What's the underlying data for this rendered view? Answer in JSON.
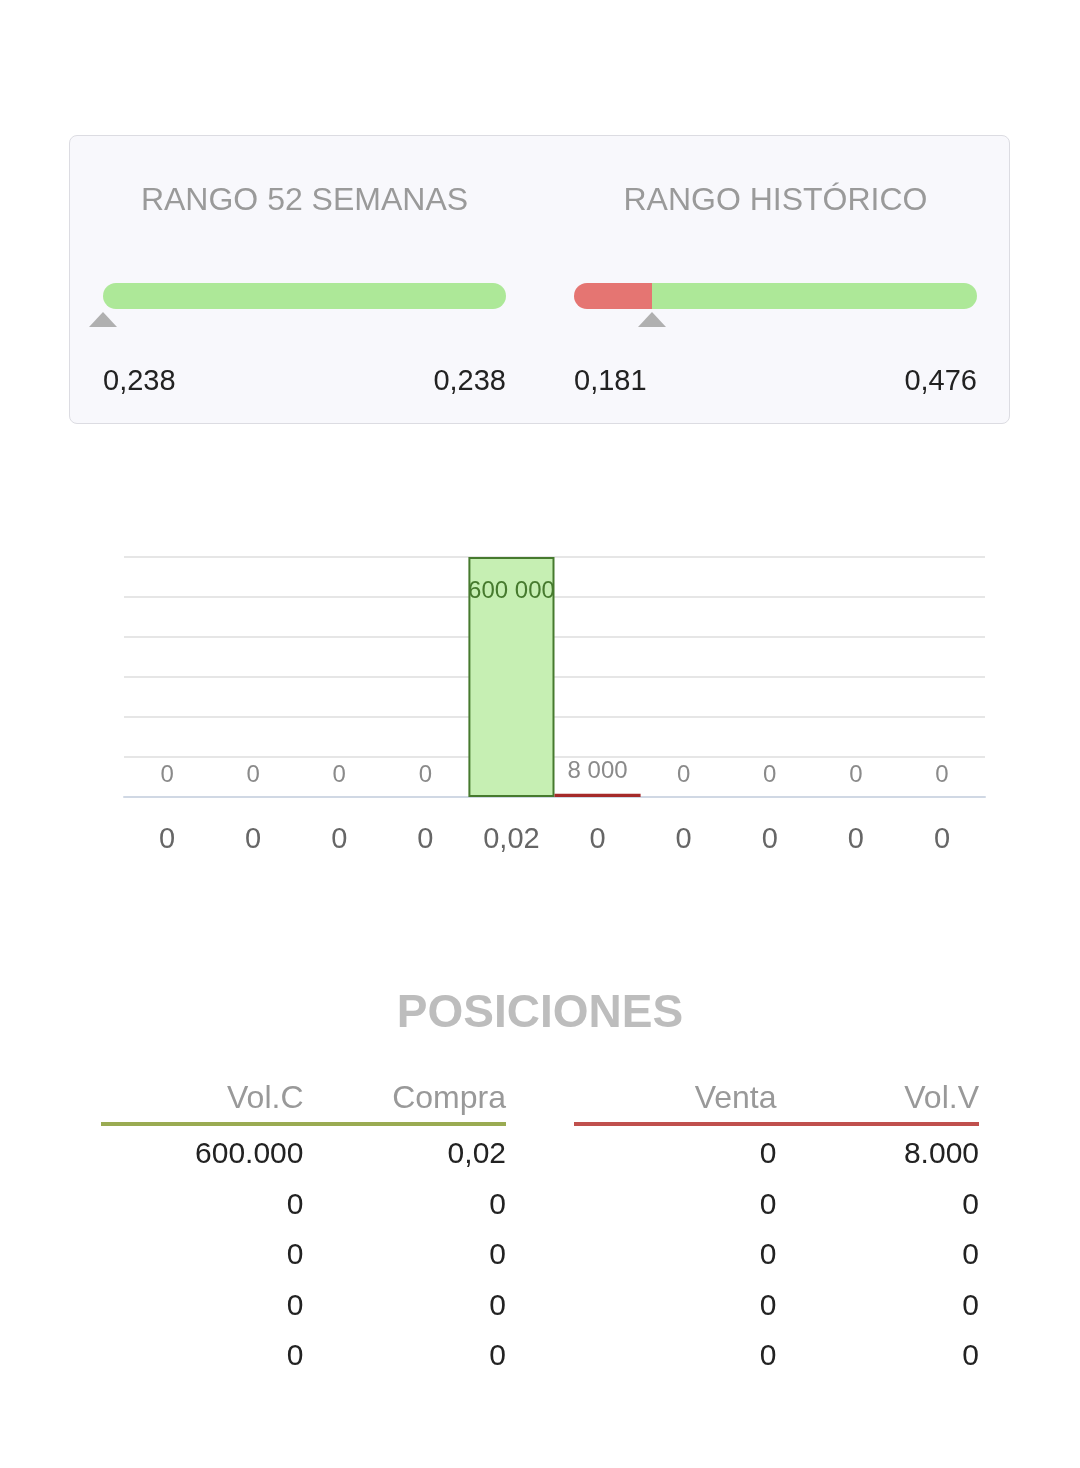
{
  "chart_data": [
    {
      "type": "other",
      "title": "RANGO 52 SEMANAS",
      "annotations": [
        "0,238",
        "0,238"
      ]
    },
    {
      "type": "other",
      "title": "RANGO HISTÓRICO",
      "annotations": [
        "0,181",
        "0,476"
      ]
    },
    {
      "type": "bar",
      "categories": [
        "0",
        "0",
        "0",
        "0",
        "0,02",
        "0",
        "0",
        "0",
        "0",
        "0"
      ],
      "series": [
        {
          "color": "#c6efb3",
          "values": [
            0,
            0,
            0,
            0,
            600000,
            null,
            null,
            null,
            null,
            null
          ],
          "value_labels": [
            "0",
            "0",
            "0",
            "0",
            "600 000",
            null,
            null,
            null,
            null,
            null
          ]
        },
        {
          "color": "#a52a2a",
          "values": [
            null,
            null,
            null,
            null,
            null,
            8000,
            0,
            0,
            0,
            0
          ],
          "value_labels": [
            null,
            null,
            null,
            null,
            null,
            "8 000",
            "0",
            "0",
            "0",
            "0"
          ]
        }
      ],
      "ylim": [
        0,
        600000
      ],
      "yticks": [
        {
          "value": 0,
          "label": null
        },
        {
          "value": 100000,
          "label": null
        },
        {
          "value": 200000,
          "label": null
        },
        {
          "value": 300000,
          "label": null
        },
        {
          "value": 400000,
          "label": null
        },
        {
          "value": 500000,
          "label": null
        },
        {
          "value": 600000,
          "label": null
        }
      ],
      "tick_labels": "x",
      "grid": "y"
    },
    {
      "type": "other",
      "title": "POSICIONES",
      "annotations": [
        "Vol.C",
        "Compra",
        "Venta",
        "Vol.V",
        "600.000",
        "0,02",
        "0",
        "8.000",
        "0",
        "0",
        "0",
        "0",
        "0",
        "0",
        "0",
        "0",
        "0",
        "0",
        "0",
        "0",
        "0",
        "0",
        "0",
        "0"
      ]
    }
  ]
}
